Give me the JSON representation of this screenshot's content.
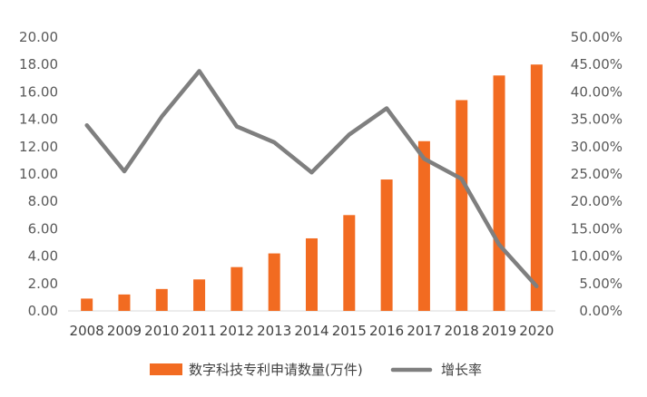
{
  "chart_data": {
    "type": "bar",
    "categories": [
      "2008",
      "2009",
      "2010",
      "2011",
      "2012",
      "2013",
      "2014",
      "2015",
      "2016",
      "2017",
      "2018",
      "2019",
      "2020"
    ],
    "series": [
      {
        "name": "数字科技专利申请数量(万件)",
        "type": "bar",
        "axis": "left",
        "color": "#F26B21",
        "values": [
          0.9,
          1.2,
          1.6,
          2.3,
          3.2,
          4.2,
          5.3,
          7.0,
          9.6,
          12.4,
          15.4,
          17.2,
          18.0
        ]
      },
      {
        "name": "增长率",
        "type": "line",
        "axis": "right",
        "color": "#7F7F7F",
        "values": [
          0.339,
          0.255,
          0.355,
          0.438,
          0.337,
          0.308,
          0.253,
          0.322,
          0.37,
          0.278,
          0.241,
          0.121,
          0.045
        ]
      }
    ],
    "y_left": {
      "lim": [
        0,
        20
      ],
      "ticks": [
        "0.00",
        "2.00",
        "4.00",
        "6.00",
        "8.00",
        "10.00",
        "12.00",
        "14.00",
        "16.00",
        "18.00",
        "20.00"
      ]
    },
    "y_right": {
      "lim": [
        0,
        0.5
      ],
      "ticks": [
        "0.00%",
        "5.00%",
        "10.00%",
        "15.00%",
        "20.00%",
        "25.00%",
        "30.00%",
        "35.00%",
        "40.00%",
        "45.00%",
        "50.00%"
      ]
    },
    "grid": false,
    "legend": "bottom-center"
  }
}
